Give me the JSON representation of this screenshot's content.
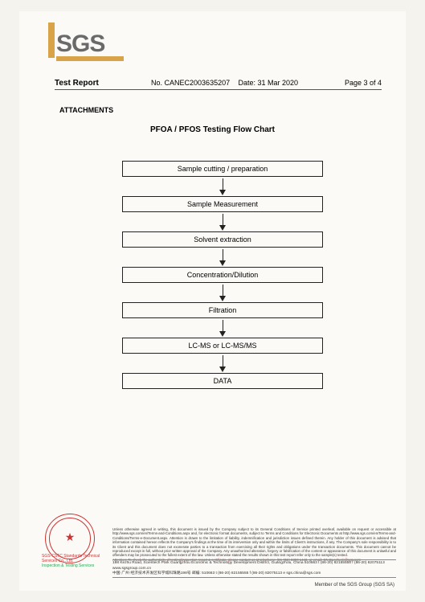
{
  "logo": {
    "text": "SGS"
  },
  "header": {
    "title": "Test Report",
    "report_no_label": "No.",
    "report_no": "CANEC2003635207",
    "date_label": "Date:",
    "date": "31 Mar 2020",
    "page": "Page 3 of 4"
  },
  "section_title": "ATTACHMENTS",
  "chart": {
    "title": "PFOA / PFOS Testing Flow Chart",
    "type": "flowchart",
    "node_border": "#222222",
    "arrow_color": "#222222",
    "background": "#fbfaf6",
    "font_size": 9,
    "nodes": [
      "Sample cutting / preparation",
      "Sample Measurement",
      "Solvent extraction",
      "Concentration/Dilution",
      "Filtration",
      "LC-MS or LC-MS/MS",
      "DATA"
    ]
  },
  "stamp": {
    "org": "SGS-CSTC Standards Technical Services Co., Ltd.",
    "dept": "Inspection & Testing Services"
  },
  "fine_print": {
    "p1": "Unless otherwise agreed in writing, this document is issued by the Company subject to its General Conditions of Service printed overleaf, available on request or accessible at http://www.sgs.com/en/Terms-and-Conditions.aspx and, for electronic format documents, subject to Terms and Conditions for Electronic Documents at http://www.sgs.com/en/Terms-and-Conditions/Terms-e-Document.aspx. Attention is drawn to the limitation of liability, indemnification and jurisdiction issues defined therein. Any holder of this document is advised that information contained hereon reflects the Company's findings at the time of its intervention only and within the limits of Client's instructions, if any. The Company's sole responsibility is to its Client and this document does not exonerate parties to a transaction from exercising all their rights and obligations under the transaction documents. This document cannot be reproduced except in full, without prior written approval of the Company. Any unauthorized alteration, forgery or falsification of the content or appearance of this document is unlawful and offenders may be prosecuted to the fullest extent of the law. Unless otherwise stated the results shown in this test report refer only to the sample(s) tested.",
    "warn": "Attention: To check the authenticity of testing/inspection report & certificate, please contact us at telephone: (86-755) 8307 1443, or email: CN.Doccheck@sgs.com"
  },
  "address": {
    "line1_en": "198 Kezhu Road, Scientech Park Guangzhou Economic & Technology Development District, Guangzhou, China  510663  t (86-20) 82155555  f (86-20) 82075113  www.sgsgroup.com.cn",
    "line2_cn": "中国·广州·经济技术开发区科学城科珠路198号    邮编: 510663  t (86-20) 82155555  f (86-20) 82075113  e sgs.china@sgs.com"
  },
  "member": "Member of the SGS Group (SGS SA)"
}
